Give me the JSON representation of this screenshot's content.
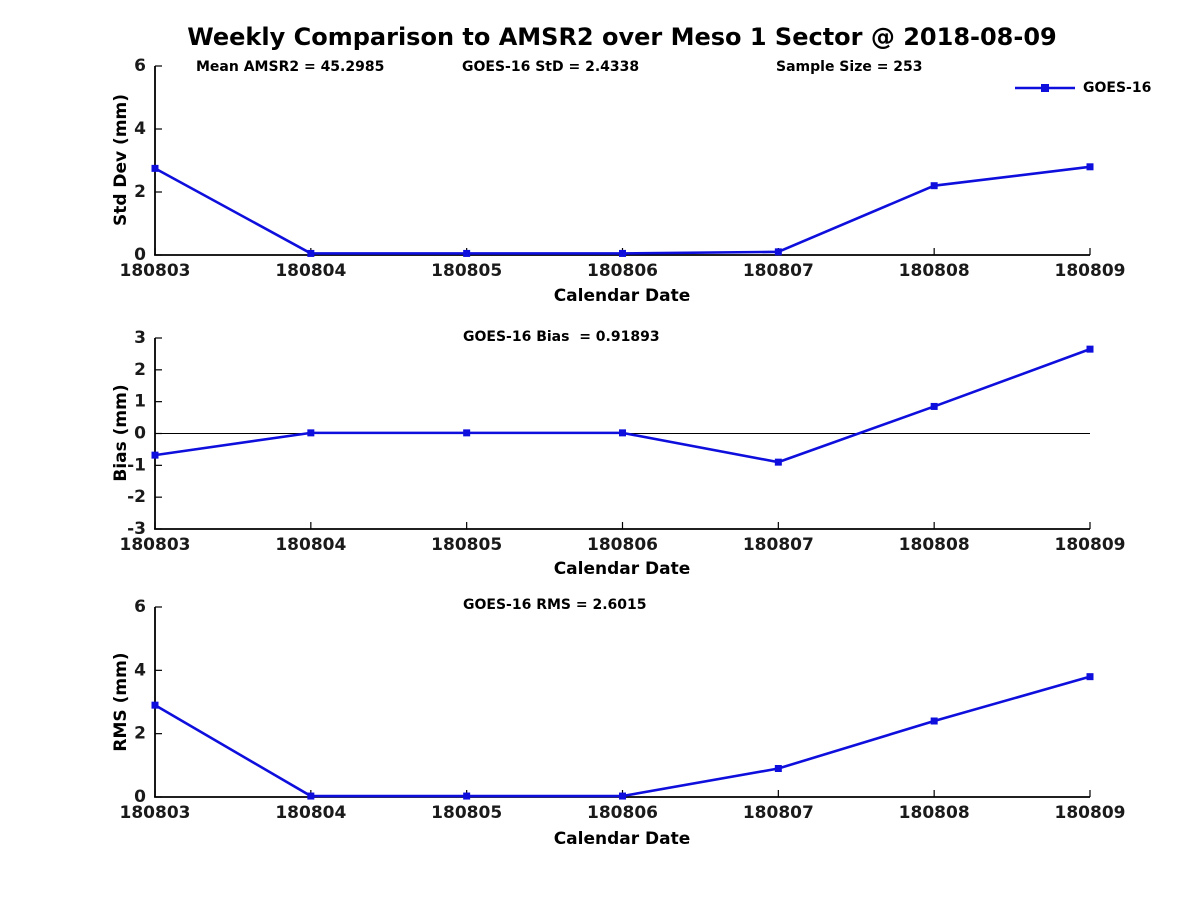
{
  "figure": {
    "title": "Weekly Comparison to AMSR2 over Meso 1 Sector @ 2018-08-09",
    "background_color": "#ffffff",
    "line_color": "#0f0fdd",
    "text_color": "#000000",
    "legend": {
      "label": "GOES-16",
      "marker": "square-icon",
      "position": "top-right"
    },
    "stats": {
      "mean_amsr2": 45.2985,
      "goes16_std": 2.4338,
      "sample_size": 253,
      "goes16_bias": 0.91893,
      "goes16_rms": 2.6015
    }
  },
  "chart_data": [
    {
      "type": "line",
      "annotations": [
        "Mean AMSR2 = 45.2985",
        "GOES-16 StD = 2.4338",
        "Sample Size = 253"
      ],
      "categories": [
        "180803",
        "180804",
        "180805",
        "180806",
        "180807",
        "180808",
        "180809"
      ],
      "series": [
        {
          "name": "GOES-16",
          "values": [
            2.75,
            0.05,
            0.05,
            0.05,
            0.1,
            2.2,
            2.8
          ]
        }
      ],
      "xlabel": "Calendar Date",
      "ylabel": "Std Dev (mm)",
      "ylim": [
        0,
        6
      ],
      "yticks": [
        0,
        2,
        4,
        6
      ],
      "grid": false,
      "zero_line": false
    },
    {
      "type": "line",
      "annotations": [
        "GOES-16 Bias  = 0.91893"
      ],
      "categories": [
        "180803",
        "180804",
        "180805",
        "180806",
        "180807",
        "180808",
        "180809"
      ],
      "series": [
        {
          "name": "GOES-16",
          "values": [
            -0.68,
            0.02,
            0.02,
            0.02,
            -0.9,
            0.85,
            2.65
          ]
        }
      ],
      "xlabel": "Calendar Date",
      "ylabel": "Bias (mm)",
      "ylim": [
        -3,
        3
      ],
      "yticks": [
        -3,
        -2,
        -1,
        0,
        1,
        2,
        3
      ],
      "grid": false,
      "zero_line": true
    },
    {
      "type": "line",
      "annotations": [
        "GOES-16 RMS = 2.6015"
      ],
      "categories": [
        "180803",
        "180804",
        "180805",
        "180806",
        "180807",
        "180808",
        "180809"
      ],
      "series": [
        {
          "name": "GOES-16",
          "values": [
            2.9,
            0.03,
            0.03,
            0.03,
            0.9,
            2.4,
            3.8
          ]
        }
      ],
      "xlabel": "Calendar Date",
      "ylabel": "RMS (mm)",
      "ylim": [
        0,
        6
      ],
      "yticks": [
        0,
        2,
        4,
        6
      ],
      "grid": false,
      "zero_line": false
    }
  ]
}
